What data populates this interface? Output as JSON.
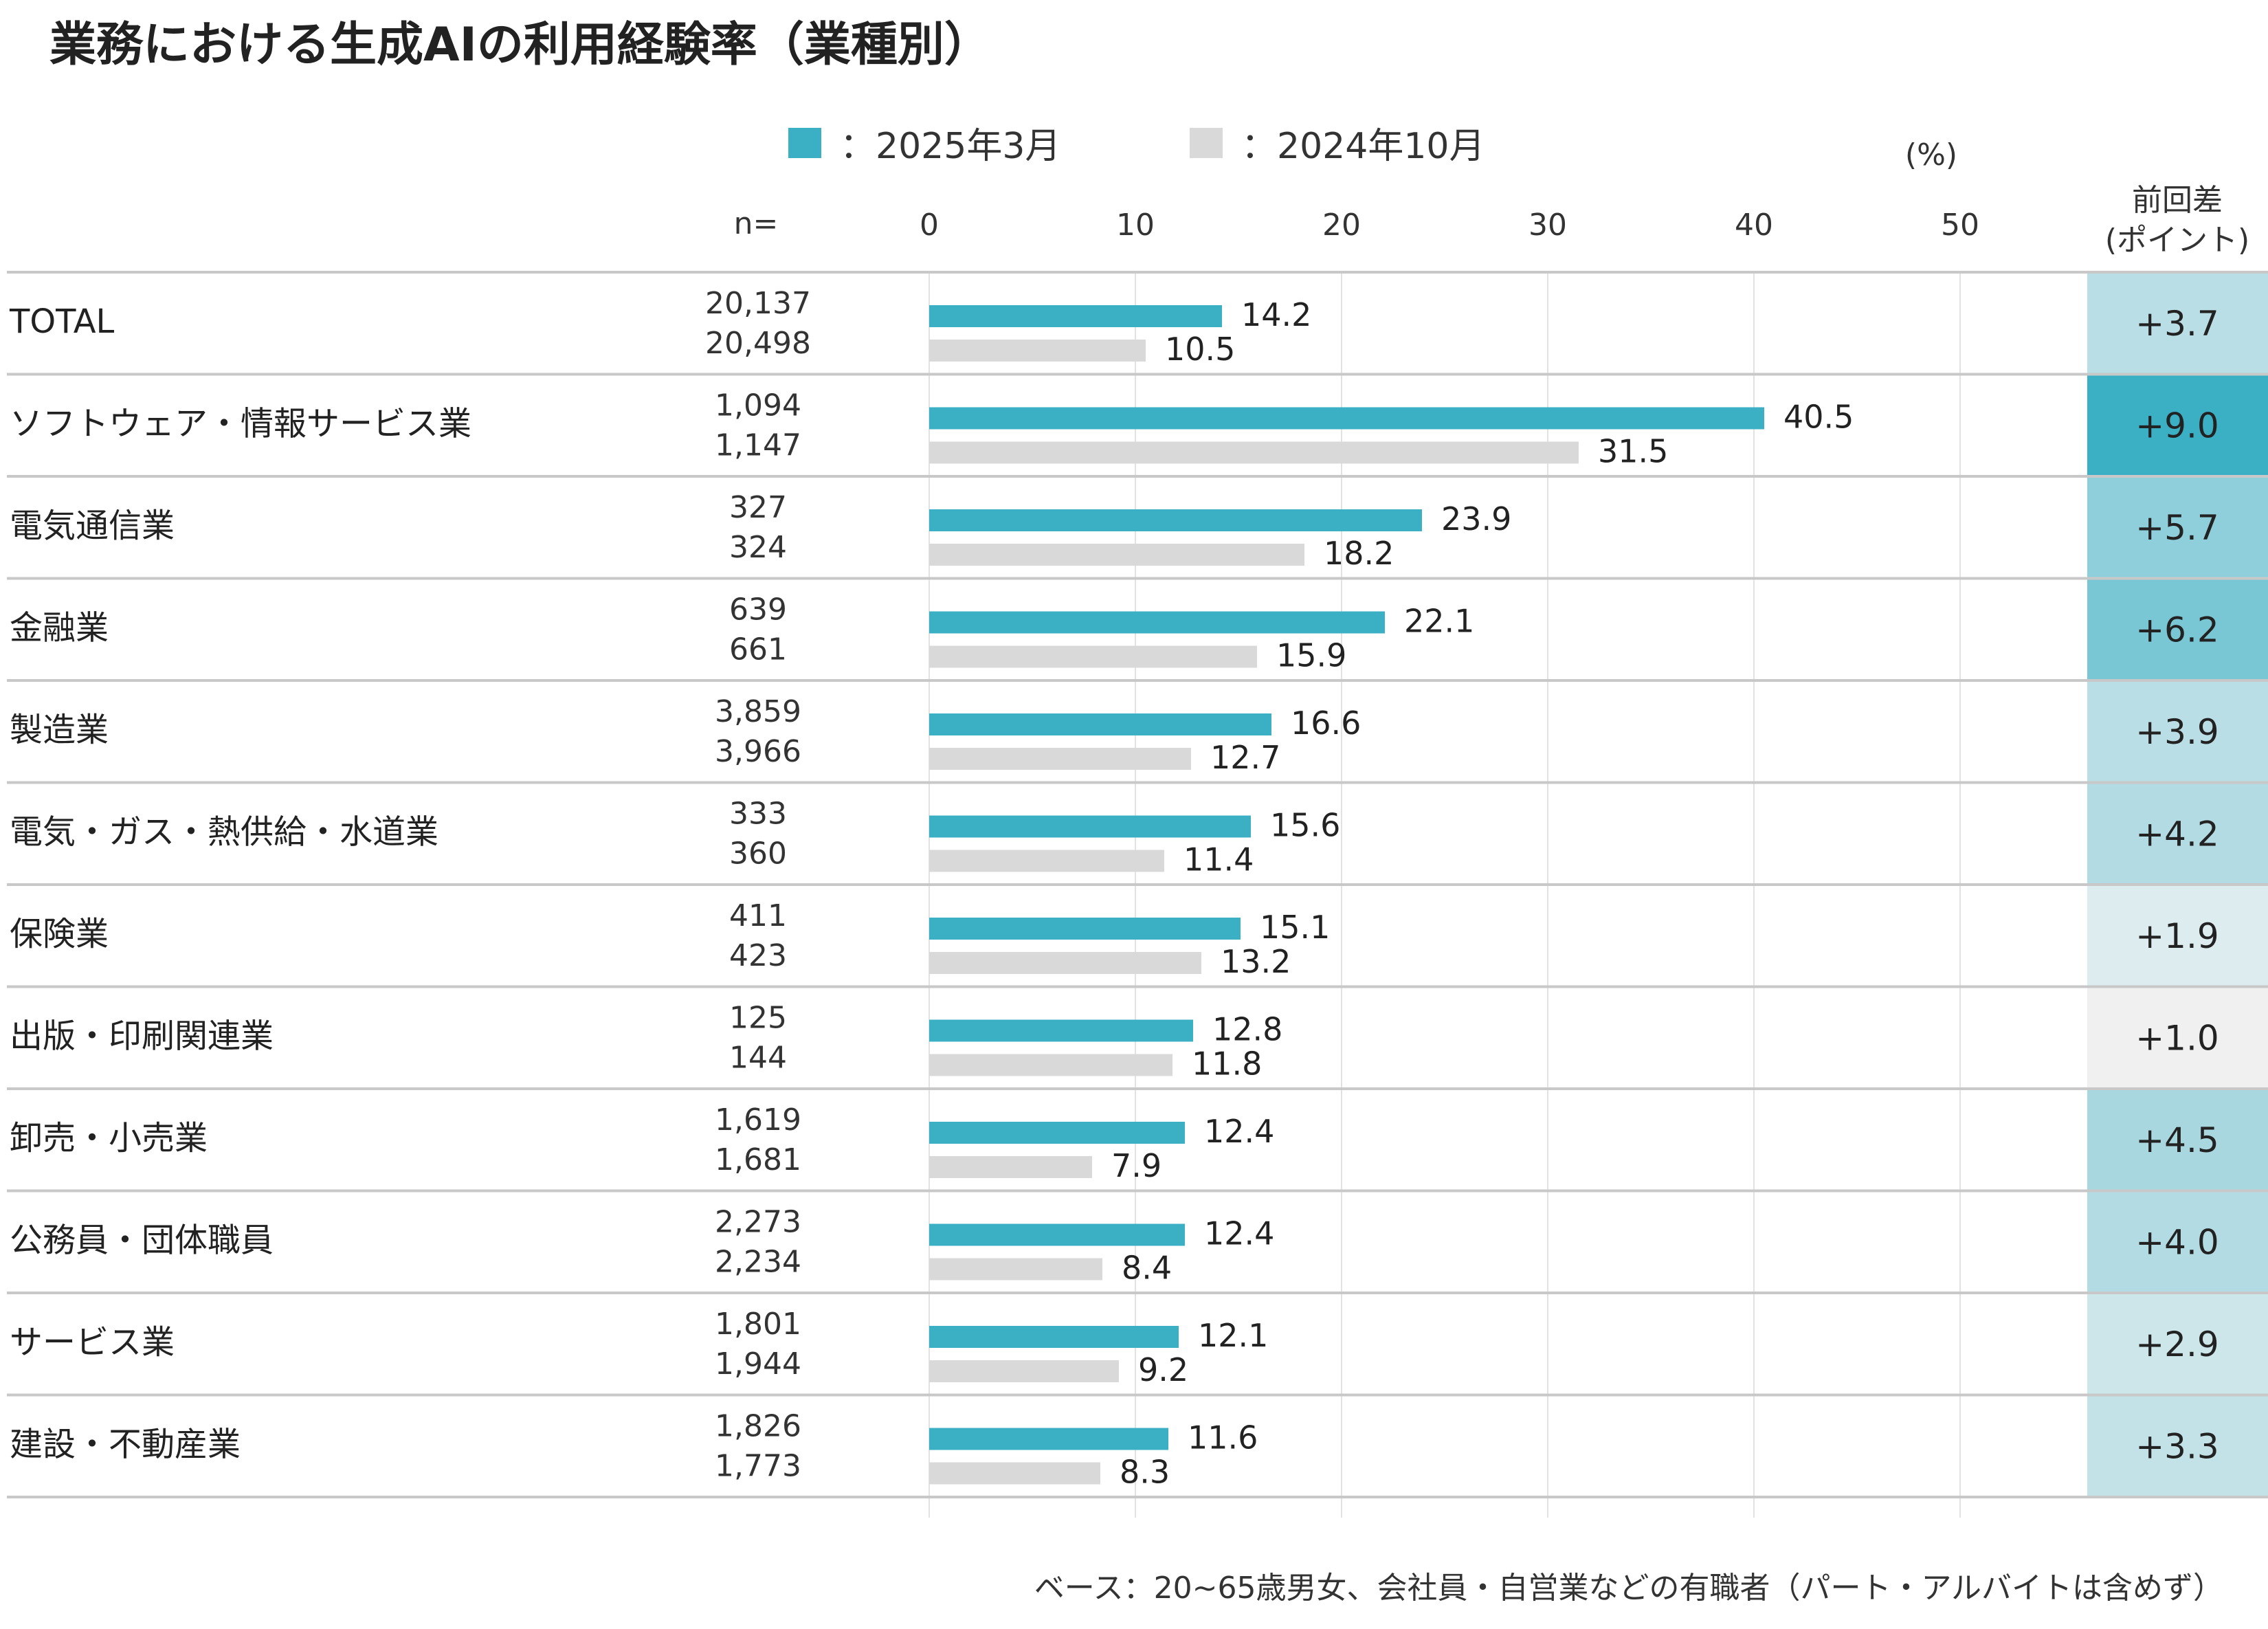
{
  "chart_data": {
    "type": "bar",
    "orientation": "horizontal",
    "title": "業務における生成AIの利用経験率（業種別）",
    "unit_label": "(%)",
    "n_label": "n=",
    "diff_header_line1": "前回差",
    "diff_header_line2": "(ポイント)",
    "xlim": [
      0,
      50
    ],
    "xticks": [
      0,
      10,
      20,
      30,
      40,
      50
    ],
    "legend": [
      {
        "label": "：2025年3月",
        "color": "#3BAFC4"
      },
      {
        "label": "：2024年10月",
        "color": "#D9D9D9"
      }
    ],
    "series": [
      {
        "name": "2025年3月",
        "color": "#3BAFC4"
      },
      {
        "name": "2024年10月",
        "color": "#D9D9D9"
      }
    ],
    "categories": [
      "TOTAL",
      "ソフトウェア・情報サービス業",
      "電気通信業",
      "金融業",
      "製造業",
      "電気・ガス・熱供給・水道業",
      "保険業",
      "出版・印刷関連業",
      "卸売・小売業",
      "公務員・団体職員",
      "サービス業",
      "建設・不動産業"
    ],
    "rows": [
      {
        "n1": "20,137",
        "n2": "20,498",
        "v1": 14.2,
        "v2": 10.5,
        "diff": "+3.7",
        "diffColor": "#B9DEE5"
      },
      {
        "n1": "1,094",
        "n2": "1,147",
        "v1": 40.5,
        "v2": 31.5,
        "diff": "+9.0",
        "diffColor": "#3BAFC4"
      },
      {
        "n1": "327",
        "n2": "324",
        "v1": 23.9,
        "v2": 18.2,
        "diff": "+5.7",
        "diffColor": "#8ECFDB"
      },
      {
        "n1": "639",
        "n2": "661",
        "v1": 22.1,
        "v2": 15.9,
        "diff": "+6.2",
        "diffColor": "#79C6D4"
      },
      {
        "n1": "3,859",
        "n2": "3,966",
        "v1": 16.6,
        "v2": 12.7,
        "diff": "+3.9",
        "diffColor": "#B9DEE5"
      },
      {
        "n1": "333",
        "n2": "360",
        "v1": 15.6,
        "v2": 11.4,
        "diff": "+4.2",
        "diffColor": "#B2DBE3"
      },
      {
        "n1": "411",
        "n2": "423",
        "v1": 15.1,
        "v2": 13.2,
        "diff": "+1.9",
        "diffColor": "#DDEDEF"
      },
      {
        "n1": "125",
        "n2": "144",
        "v1": 12.8,
        "v2": 11.8,
        "diff": "+1.0",
        "diffColor": "#F0F0F0"
      },
      {
        "n1": "1,619",
        "n2": "1,681",
        "v1": 12.4,
        "v2": 7.9,
        "diff": "+4.5",
        "diffColor": "#A9D7E0"
      },
      {
        "n1": "2,273",
        "n2": "2,234",
        "v1": 12.4,
        "v2": 8.4,
        "diff": "+4.0",
        "diffColor": "#B2DBE3"
      },
      {
        "n1": "1,801",
        "n2": "1,944",
        "v1": 12.1,
        "v2": 9.2,
        "diff": "+2.9",
        "diffColor": "#CCE6EA"
      },
      {
        "n1": "1,826",
        "n2": "1,773",
        "v1": 11.6,
        "v2": 8.3,
        "diff": "+3.3",
        "diffColor": "#C2E2E7"
      }
    ],
    "footnote": "ベース：20~65歳男女、会社員・自営業などの有職者（パート・アルバイトは含めず）"
  }
}
